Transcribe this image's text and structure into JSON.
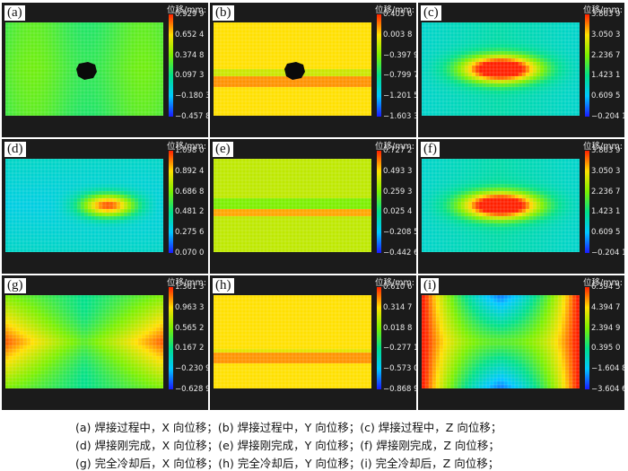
{
  "colors": {
    "scale": [
      "#1a1aff",
      "#00c8ff",
      "#00e08a",
      "#7cf000",
      "#ffe000",
      "#ff2000"
    ],
    "background": "#1b1b1b"
  },
  "panels": [
    {
      "label": "(a)",
      "unit": "位移/mm:",
      "ticks": [
        "0.929 9",
        "0.652 4",
        "0.374 8",
        "0.097 3",
        "−0.180 3",
        "−0.457 8"
      ],
      "pattern": "x-during"
    },
    {
      "label": "(b)",
      "unit": "位移/mm:",
      "ticks": [
        "0.405 6",
        "0.003 8",
        "−0.397 9",
        "−0.799 7",
        "−1.201 5",
        "−1.603 3"
      ],
      "pattern": "y-during"
    },
    {
      "label": "(c)",
      "unit": "位移/mm:",
      "ticks": [
        "3.863 9",
        "3.050 3",
        "2.236 7",
        "1.423 1",
        "0.609 5",
        "−0.204 1"
      ],
      "pattern": "z-during"
    },
    {
      "label": "(d)",
      "unit": "位移/mm:",
      "ticks": [
        "1.098 0",
        "0.892 4",
        "0.686 8",
        "0.481 2",
        "0.275 6",
        "0.070 0"
      ],
      "pattern": "x-done"
    },
    {
      "label": "(e)",
      "unit": "位移/mm:",
      "ticks": [
        "0.727 2",
        "0.493 3",
        "0.259 3",
        "0.025 4",
        "−0.208 5",
        "−0.442 6"
      ],
      "pattern": "y-done"
    },
    {
      "label": "(f)",
      "unit": "位移/mm:",
      "ticks": [
        "3.863 9",
        "3.050 3",
        "2.236 7",
        "1.423 1",
        "0.609 5",
        "−0.204 1"
      ],
      "pattern": "z-done"
    },
    {
      "label": "(g)",
      "unit": "位移/mm:",
      "ticks": [
        "1.361 3",
        "0.963 3",
        "0.565 2",
        "0.167 2",
        "−0.230 9",
        "−0.628 9"
      ],
      "pattern": "x-cool"
    },
    {
      "label": "(h)",
      "unit": "位移/mm:",
      "ticks": [
        "0.610 6",
        "0.314 7",
        "0.018 8",
        "−0.277 1",
        "−0.573 0",
        "−0.868 9"
      ],
      "pattern": "y-cool"
    },
    {
      "label": "(i)",
      "unit": "位移/mm:",
      "ticks": [
        "6.394 5",
        "4.394 7",
        "2.394 9",
        "0.395 0",
        "−1.604 8",
        "−3.604 6"
      ],
      "pattern": "z-cool"
    }
  ],
  "captions": [
    "(a)  焊接过程中，X 向位移；(b)  焊接过程中，Y 向位移；(c)  焊接过程中，Z 向位移；",
    "(d)  焊接刚完成，X 向位移；(e)  焊接刚完成，Y 向位移；(f)  焊接刚完成，Z 向位移；",
    "(g)  完全冷却后，X 向位移；(h)  完全冷却后，Y 向位移；(i)  完全冷却后，Z 向位移；"
  ]
}
